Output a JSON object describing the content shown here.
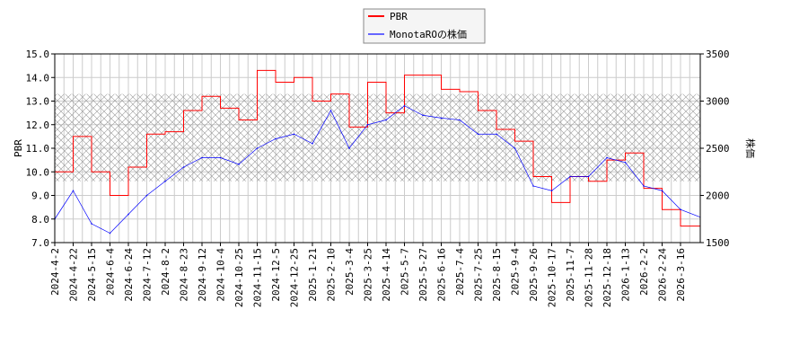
{
  "chart_data": {
    "type": "line",
    "title": "",
    "xlabel": "",
    "ylabel_left": "PBR",
    "ylabel_right": "株価",
    "ylim_left": [
      7.0,
      15.0
    ],
    "ylim_right": [
      1500,
      3500
    ],
    "yticks_left": [
      "7.0",
      "8.0",
      "9.0",
      "10.0",
      "11.0",
      "12.0",
      "13.0",
      "14.0",
      "15.0"
    ],
    "yticks_right": [
      "1500",
      "2000",
      "2500",
      "3000",
      "3500"
    ],
    "grid": true,
    "legend_position": "top-center",
    "hatched_band_pbr": [
      9.6,
      13.3
    ],
    "x": [
      "2024-4-2",
      "2024-4-22",
      "2024-5-15",
      "2024-6-4",
      "2024-6-24",
      "2024-7-12",
      "2024-8-2",
      "2024-8-23",
      "2024-9-12",
      "2024-10-4",
      "2024-10-25",
      "2024-11-15",
      "2024-12-5",
      "2024-12-25",
      "2025-1-21",
      "2025-2-10",
      "2025-3-4",
      "2025-3-25",
      "2025-4-14",
      "2025-5-7",
      "2025-5-27",
      "2025-6-16",
      "2025-7-4",
      "2025-7-25",
      "2025-8-15",
      "2025-9-4",
      "2025-9-26",
      "2025-10-17",
      "2025-11-7",
      "2025-11-28",
      "2025-12-18",
      "2026-1-13",
      "2026-2-2",
      "2026-2-24",
      "2026-3-16"
    ],
    "series": [
      {
        "name": "PBR",
        "axis": "left",
        "color": "#ff0000",
        "values": [
          10.0,
          11.5,
          10.0,
          9.0,
          10.2,
          11.6,
          11.7,
          12.6,
          13.2,
          12.7,
          12.2,
          14.3,
          13.8,
          14.0,
          13.0,
          13.3,
          11.9,
          13.8,
          12.5,
          14.1,
          14.1,
          13.5,
          13.4,
          12.6,
          11.8,
          11.3,
          9.8,
          8.7,
          9.8,
          9.6,
          10.5,
          10.8,
          9.3,
          8.4,
          7.7
        ]
      },
      {
        "name": "MonotaROの株価",
        "axis": "right",
        "color": "#0000ff",
        "values": [
          1750,
          2050,
          1700,
          1600,
          1800,
          2000,
          2150,
          2300,
          2400,
          2400,
          2330,
          2500,
          2600,
          2650,
          2550,
          2900,
          2500,
          2750,
          2800,
          2950,
          2850,
          2820,
          2800,
          2650,
          2650,
          2500,
          2100,
          2050,
          2200,
          2200,
          2400,
          2350,
          2100,
          2050,
          1850
        ]
      }
    ]
  }
}
